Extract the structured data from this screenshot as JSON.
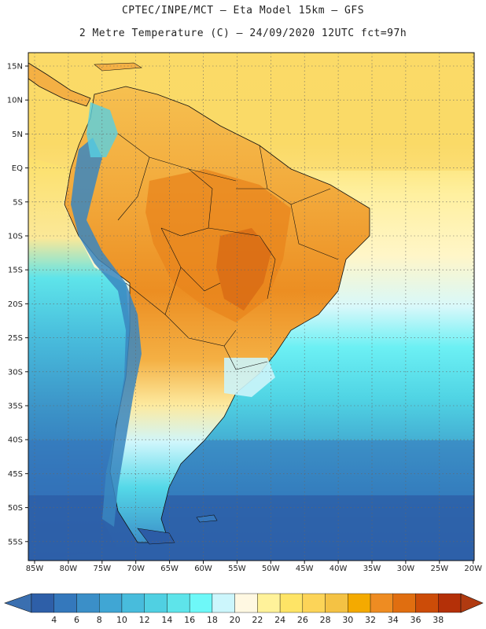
{
  "header": {
    "line1": "CPTEC/INPE/MCT –  Eta Model 15km – GFS",
    "line2": "2 Metre Temperature (C) – 24/09/2020 12UTC fct=97h"
  },
  "axes": {
    "lat_labels": [
      "15N",
      "10N",
      "5N",
      "EQ",
      "5S",
      "10S",
      "15S",
      "20S",
      "25S",
      "30S",
      "35S",
      "40S",
      "45S",
      "50S",
      "55S"
    ],
    "lon_labels": [
      "85W",
      "80W",
      "75W",
      "70W",
      "65W",
      "60W",
      "55W",
      "50W",
      "45W",
      "40W",
      "35W",
      "30W",
      "25W",
      "20W"
    ]
  },
  "colorbar": {
    "labels": [
      "4",
      "6",
      "8",
      "10",
      "12",
      "14",
      "16",
      "18",
      "20",
      "22",
      "24",
      "26",
      "28",
      "30",
      "32",
      "34",
      "36",
      "38"
    ],
    "colors": [
      "#2e5fa8",
      "#3478bc",
      "#3b8fc8",
      "#40a6d4",
      "#48bcdc",
      "#50d0e2",
      "#5ee4ea",
      "#6ef8f8",
      "#ccf6fc",
      "#fff8e2",
      "#fff29a",
      "#fee466",
      "#fcd458",
      "#f4c244",
      "#f4aa00",
      "#ee8c22",
      "#e06e10",
      "#cc4c08",
      "#b43008"
    ],
    "low_color": "#3a6fb0",
    "high_color": "#b03a10"
  },
  "map": {
    "ocean_color": "#fce064",
    "land_hot": "#f0a030",
    "land_hotter": "#e07a18",
    "ocean_cold": "#2e62a8",
    "ocean_cool": "#4cc8e0",
    "ocean_mid": "#64ecf2",
    "andes": "#3a86c0"
  }
}
